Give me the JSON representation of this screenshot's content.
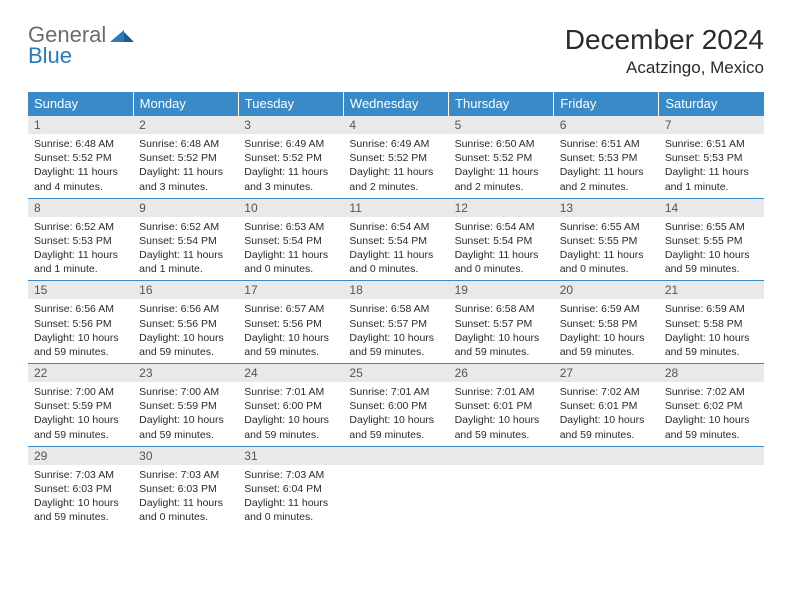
{
  "brand": {
    "word1": "General",
    "word2": "Blue",
    "gray": "#6c6c6c",
    "blue": "#2a7ab8"
  },
  "header": {
    "title": "December 2024",
    "location": "Acatzingo, Mexico"
  },
  "colors": {
    "header_bg": "#3a8ac8",
    "row_border": "#3a8ac8",
    "daynum_bg": "#e9e9e9"
  },
  "weekdays": [
    "Sunday",
    "Monday",
    "Tuesday",
    "Wednesday",
    "Thursday",
    "Friday",
    "Saturday"
  ],
  "weeks": [
    [
      {
        "n": "1",
        "sunrise": "6:48 AM",
        "sunset": "5:52 PM",
        "daylight": "11 hours and 4 minutes."
      },
      {
        "n": "2",
        "sunrise": "6:48 AM",
        "sunset": "5:52 PM",
        "daylight": "11 hours and 3 minutes."
      },
      {
        "n": "3",
        "sunrise": "6:49 AM",
        "sunset": "5:52 PM",
        "daylight": "11 hours and 3 minutes."
      },
      {
        "n": "4",
        "sunrise": "6:49 AM",
        "sunset": "5:52 PM",
        "daylight": "11 hours and 2 minutes."
      },
      {
        "n": "5",
        "sunrise": "6:50 AM",
        "sunset": "5:52 PM",
        "daylight": "11 hours and 2 minutes."
      },
      {
        "n": "6",
        "sunrise": "6:51 AM",
        "sunset": "5:53 PM",
        "daylight": "11 hours and 2 minutes."
      },
      {
        "n": "7",
        "sunrise": "6:51 AM",
        "sunset": "5:53 PM",
        "daylight": "11 hours and 1 minute."
      }
    ],
    [
      {
        "n": "8",
        "sunrise": "6:52 AM",
        "sunset": "5:53 PM",
        "daylight": "11 hours and 1 minute."
      },
      {
        "n": "9",
        "sunrise": "6:52 AM",
        "sunset": "5:54 PM",
        "daylight": "11 hours and 1 minute."
      },
      {
        "n": "10",
        "sunrise": "6:53 AM",
        "sunset": "5:54 PM",
        "daylight": "11 hours and 0 minutes."
      },
      {
        "n": "11",
        "sunrise": "6:54 AM",
        "sunset": "5:54 PM",
        "daylight": "11 hours and 0 minutes."
      },
      {
        "n": "12",
        "sunrise": "6:54 AM",
        "sunset": "5:54 PM",
        "daylight": "11 hours and 0 minutes."
      },
      {
        "n": "13",
        "sunrise": "6:55 AM",
        "sunset": "5:55 PM",
        "daylight": "11 hours and 0 minutes."
      },
      {
        "n": "14",
        "sunrise": "6:55 AM",
        "sunset": "5:55 PM",
        "daylight": "10 hours and 59 minutes."
      }
    ],
    [
      {
        "n": "15",
        "sunrise": "6:56 AM",
        "sunset": "5:56 PM",
        "daylight": "10 hours and 59 minutes."
      },
      {
        "n": "16",
        "sunrise": "6:56 AM",
        "sunset": "5:56 PM",
        "daylight": "10 hours and 59 minutes."
      },
      {
        "n": "17",
        "sunrise": "6:57 AM",
        "sunset": "5:56 PM",
        "daylight": "10 hours and 59 minutes."
      },
      {
        "n": "18",
        "sunrise": "6:58 AM",
        "sunset": "5:57 PM",
        "daylight": "10 hours and 59 minutes."
      },
      {
        "n": "19",
        "sunrise": "6:58 AM",
        "sunset": "5:57 PM",
        "daylight": "10 hours and 59 minutes."
      },
      {
        "n": "20",
        "sunrise": "6:59 AM",
        "sunset": "5:58 PM",
        "daylight": "10 hours and 59 minutes."
      },
      {
        "n": "21",
        "sunrise": "6:59 AM",
        "sunset": "5:58 PM",
        "daylight": "10 hours and 59 minutes."
      }
    ],
    [
      {
        "n": "22",
        "sunrise": "7:00 AM",
        "sunset": "5:59 PM",
        "daylight": "10 hours and 59 minutes."
      },
      {
        "n": "23",
        "sunrise": "7:00 AM",
        "sunset": "5:59 PM",
        "daylight": "10 hours and 59 minutes."
      },
      {
        "n": "24",
        "sunrise": "7:01 AM",
        "sunset": "6:00 PM",
        "daylight": "10 hours and 59 minutes."
      },
      {
        "n": "25",
        "sunrise": "7:01 AM",
        "sunset": "6:00 PM",
        "daylight": "10 hours and 59 minutes."
      },
      {
        "n": "26",
        "sunrise": "7:01 AM",
        "sunset": "6:01 PM",
        "daylight": "10 hours and 59 minutes."
      },
      {
        "n": "27",
        "sunrise": "7:02 AM",
        "sunset": "6:01 PM",
        "daylight": "10 hours and 59 minutes."
      },
      {
        "n": "28",
        "sunrise": "7:02 AM",
        "sunset": "6:02 PM",
        "daylight": "10 hours and 59 minutes."
      }
    ],
    [
      {
        "n": "29",
        "sunrise": "7:03 AM",
        "sunset": "6:03 PM",
        "daylight": "10 hours and 59 minutes."
      },
      {
        "n": "30",
        "sunrise": "7:03 AM",
        "sunset": "6:03 PM",
        "daylight": "11 hours and 0 minutes."
      },
      {
        "n": "31",
        "sunrise": "7:03 AM",
        "sunset": "6:04 PM",
        "daylight": "11 hours and 0 minutes."
      },
      {
        "empty": true
      },
      {
        "empty": true
      },
      {
        "empty": true
      },
      {
        "empty": true
      }
    ]
  ],
  "labels": {
    "sunrise": "Sunrise: ",
    "sunset": "Sunset: ",
    "daylight": "Daylight: "
  }
}
